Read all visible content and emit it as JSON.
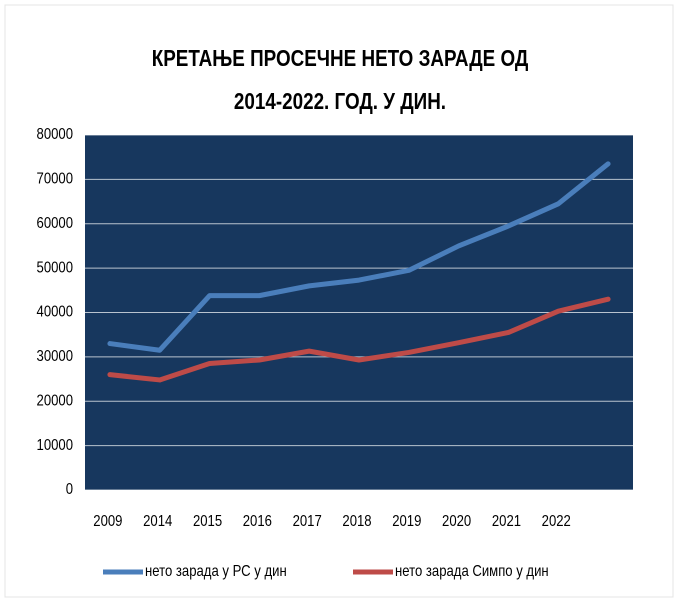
{
  "chart_data": {
    "type": "line",
    "title": [
      "КРЕТАЊЕ ПРОСЕЧНЕ НЕТО ЗАРАДЕ ОД",
      "2014-2022. ГОД. У ДИН."
    ],
    "categories": [
      "2009",
      "2014",
      "2015",
      "2016",
      "2017",
      "2018",
      "2019",
      "2020",
      "2021",
      "2022",
      null
    ],
    "series": [
      {
        "name": "нето зарада у РС у дин",
        "color": "#4a7ebb",
        "values": [
          33000,
          31500,
          43800,
          43800,
          46000,
          47300,
          49500,
          55000,
          59500,
          64500,
          73500
        ]
      },
      {
        "name": "нето зарада Симпо у дин",
        "color": "#be4b48",
        "values": [
          26000,
          24800,
          28500,
          29300,
          31300,
          29300,
          31000,
          33200,
          35500,
          40300,
          43000
        ]
      }
    ],
    "ylim": [
      0,
      80000
    ],
    "yticks": [
      0,
      10000,
      20000,
      30000,
      40000,
      50000,
      60000,
      70000,
      80000
    ],
    "grid": true,
    "plot_background": "#17375e",
    "legend": "bottom"
  }
}
